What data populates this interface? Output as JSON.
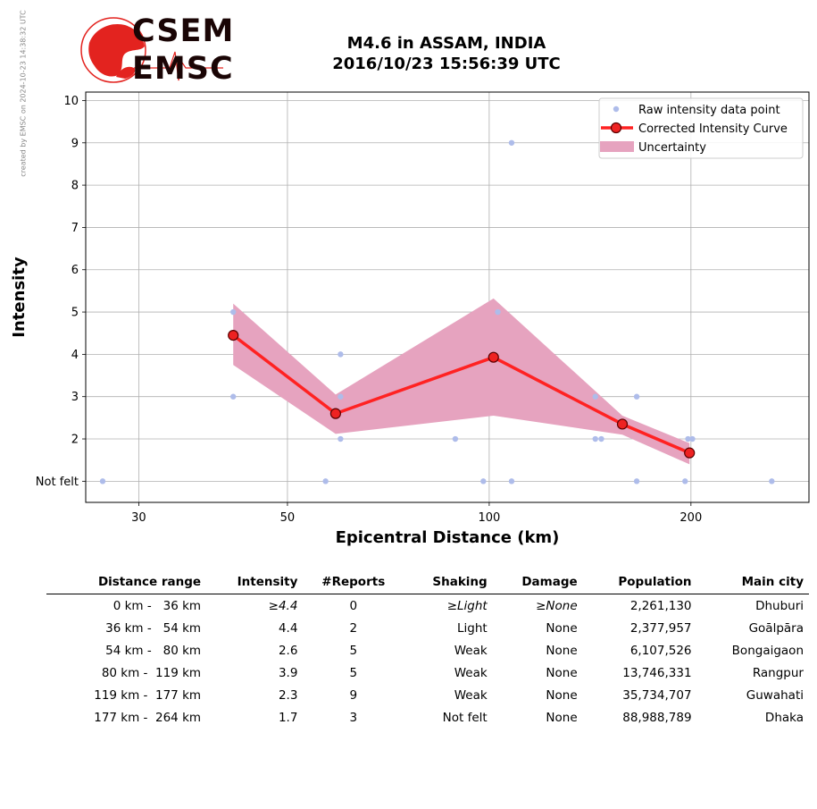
{
  "watermark": "created by EMSC on 2024-10-23 14:38:32 UTC",
  "logo": {
    "line1": "CSEM",
    "line2": "EMSC",
    "color": "#e3231f"
  },
  "title": {
    "line1": "M4.6 in ASSAM, INDIA",
    "line2": "2016/10/23 15:56:39 UTC"
  },
  "chart_data": {
    "type": "scatter",
    "xlabel": "Epicentral Distance (km)",
    "ylabel": "Intensity",
    "xscale": "log",
    "xlim": [
      25,
      300
    ],
    "ylim": [
      0.5,
      10.2
    ],
    "xticks": [
      30,
      50,
      100,
      200
    ],
    "yticks": [
      1,
      2,
      3,
      4,
      5,
      6,
      7,
      8,
      9,
      10
    ],
    "ytick_labels": [
      "Not felt",
      "2",
      "3",
      "4",
      "5",
      "6",
      "7",
      "8",
      "9",
      "10"
    ],
    "grid": true,
    "legend_position": "top-right",
    "series": [
      {
        "name": "Raw intensity data point",
        "kind": "points",
        "color": "#aebcea",
        "x": [
          26.5,
          41.5,
          41.5,
          60,
          60,
          60,
          57,
          89,
          98,
          103,
          108,
          108,
          144,
          144,
          147,
          166,
          166,
          196,
          198,
          201,
          264
        ],
        "y": [
          1,
          5,
          3,
          4,
          3,
          2,
          1,
          2,
          1,
          5,
          9,
          1,
          3,
          2,
          2,
          3,
          1,
          1,
          2,
          2,
          1
        ]
      },
      {
        "name": "Corrected Intensity Curve",
        "kind": "line",
        "color": "#ff2222",
        "x": [
          41.5,
          59,
          101.5,
          158,
          199
        ],
        "y": [
          4.45,
          2.6,
          3.93,
          2.35,
          1.67
        ]
      },
      {
        "name": "Uncertainty",
        "kind": "band",
        "color": "#e6a3bf",
        "x": [
          41.5,
          59,
          101.5,
          158,
          199
        ],
        "upper": [
          5.2,
          3.05,
          5.32,
          2.55,
          1.9
        ],
        "lower": [
          3.75,
          2.12,
          2.55,
          2.1,
          1.4
        ]
      }
    ]
  },
  "table": {
    "headers": [
      "Distance range",
      "Intensity",
      "#Reports",
      "Shaking",
      "Damage",
      "Population",
      "Main city"
    ],
    "rows": [
      [
        "0 km -   36 km",
        "≥4.4",
        "0",
        "≥Light",
        "≥None",
        "2,261,130",
        "Dhuburi"
      ],
      [
        "36 km -   54 km",
        "4.4",
        "2",
        "Light",
        "None",
        "2,377,957",
        "Goālpāra"
      ],
      [
        "54 km -   80 km",
        "2.6",
        "5",
        "Weak",
        "None",
        "6,107,526",
        "Bongaigaon"
      ],
      [
        "80 km -  119 km",
        "3.9",
        "5",
        "Weak",
        "None",
        "13,746,331",
        "Rangpur"
      ],
      [
        "119 km -  177 km",
        "2.3",
        "9",
        "Weak",
        "None",
        "35,734,707",
        "Guwahati"
      ],
      [
        "177 km -  264 km",
        "1.7",
        "3",
        "Not felt",
        "None",
        "88,988,789",
        "Dhaka"
      ]
    ]
  }
}
